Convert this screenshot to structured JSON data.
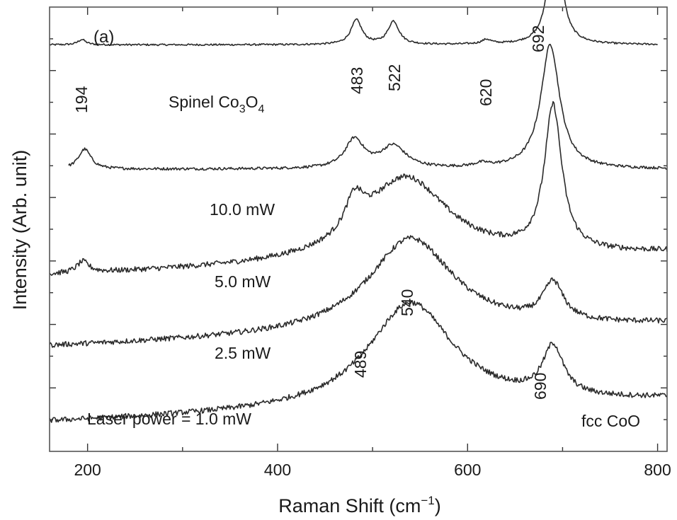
{
  "chart_data": {
    "type": "line",
    "panel_label": "(a)",
    "xlabel": "Raman Shift (cm",
    "xlabel_sup": "−1",
    "xlabel_end": ")",
    "ylabel": "Intensity (Arb. unit)",
    "xlim": [
      160,
      810
    ],
    "x_ticks": [
      200,
      400,
      600,
      800
    ],
    "x_tick_labels": [
      "200",
      "400",
      "600",
      "800"
    ],
    "y_scale": "arbitrary (stacked traces, offset)",
    "grid": false,
    "series": [
      {
        "name": "Spinel Co3O4",
        "label_main": "Spinel Co",
        "label_sub1": "3",
        "label_mid": "O",
        "label_sub2": "4",
        "baseline": 0.915,
        "x_start": 160,
        "x_end": 800,
        "peaks": [
          [
            194,
            0.012,
            5
          ],
          [
            483,
            0.055,
            7
          ],
          [
            522,
            0.052,
            7
          ],
          [
            620,
            0.01,
            6
          ],
          [
            692,
            0.315,
            7
          ]
        ],
        "noise": 0.002
      },
      {
        "name": "10.0 mW",
        "label": "10.0 mW",
        "baseline": 0.635,
        "x_start": 180,
        "x_end": 810,
        "peaks": [
          [
            197,
            0.045,
            8
          ],
          [
            481,
            0.065,
            12
          ],
          [
            522,
            0.05,
            16
          ],
          [
            615,
            0.008,
            10
          ],
          [
            687,
            0.28,
            12
          ]
        ],
        "noise": 0.003
      },
      {
        "name": "5.0 mW",
        "label": "5.0 mW",
        "baseline": 0.395,
        "slope": 0.05,
        "x_start": 160,
        "x_end": 810,
        "peaks": [
          [
            195,
            0.025,
            8
          ],
          [
            481,
            0.075,
            12
          ],
          [
            535,
            0.19,
            55
          ],
          [
            690,
            0.325,
            11
          ]
        ],
        "noise": 0.006
      },
      {
        "name": "2.5 mW",
        "label": "2.5 mW",
        "baseline": 0.235,
        "slope": 0.05,
        "x_start": 160,
        "x_end": 810,
        "peaks": [
          [
            540,
            0.215,
            55
          ],
          [
            690,
            0.085,
            13
          ]
        ],
        "noise": 0.006
      },
      {
        "name": "Laser power = 1.0 mW",
        "label": "Laser power = 1.0 mW",
        "baseline": 0.065,
        "slope": 0.05,
        "x_start": 160,
        "x_end": 810,
        "peaks": [
          [
            540,
            0.24,
            55
          ],
          [
            690,
            0.11,
            13
          ]
        ],
        "noise": 0.006
      }
    ],
    "annotations": [
      {
        "text": "194",
        "x": 194
      },
      {
        "text": "483",
        "x": 483
      },
      {
        "text": "522",
        "x": 522
      },
      {
        "text": "620",
        "x": 620
      },
      {
        "text": "692",
        "x": 692
      },
      {
        "text": "540",
        "x": 540
      },
      {
        "text": "489",
        "x": 489
      },
      {
        "text": "690",
        "x": 690
      },
      {
        "text": "fcc CoO",
        "x": 752
      }
    ]
  }
}
